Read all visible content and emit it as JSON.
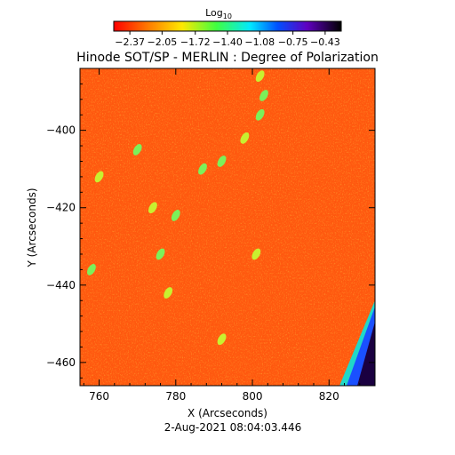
{
  "chart_data": {
    "type": "heatmap",
    "title": "Hinode SOT/SP - MERLIN : Degree of Polarization",
    "colorbar": {
      "label_main": "Log",
      "label_sub": "10",
      "ticks": [
        "-2.37",
        "-2.05",
        "-1.72",
        "-1.40",
        "-1.08",
        "-0.75",
        "-0.43"
      ],
      "range": [
        -2.53,
        -0.27
      ]
    },
    "xlabel": "X (Arcseconds)",
    "ylabel": "Y (Arcseconds)",
    "x_ticks": [
      760,
      780,
      800,
      820
    ],
    "y_ticks": [
      -400,
      -420,
      -440,
      -460
    ],
    "xlim": [
      755,
      832
    ],
    "ylim": [
      -466,
      -384
    ],
    "grid": false,
    "timestamp": "2-Aug-2021 08:04:03.446",
    "colors": {
      "background_field": "#ff5a10",
      "strip_dark": "#0a0010",
      "strip_blue": "#1a50ff",
      "strip_cyan": "#20d8c8"
    },
    "features": [
      {
        "x": 802,
        "y": -386,
        "level": "green-yellow"
      },
      {
        "x": 803,
        "y": -391,
        "level": "green"
      },
      {
        "x": 802,
        "y": -396,
        "level": "green"
      },
      {
        "x": 798,
        "y": -402,
        "level": "green-yellow"
      },
      {
        "x": 792,
        "y": -408,
        "level": "green"
      },
      {
        "x": 787,
        "y": -410,
        "level": "green"
      },
      {
        "x": 780,
        "y": -422,
        "level": "green"
      },
      {
        "x": 776,
        "y": -432,
        "level": "green"
      },
      {
        "x": 778,
        "y": -442,
        "level": "green-yellow"
      },
      {
        "x": 758,
        "y": -436,
        "level": "green"
      },
      {
        "x": 760,
        "y": -412,
        "level": "green-yellow"
      },
      {
        "x": 770,
        "y": -405,
        "level": "green"
      },
      {
        "x": 801,
        "y": -432,
        "level": "green-yellow"
      },
      {
        "x": 792,
        "y": -454,
        "level": "green-yellow"
      },
      {
        "x": 774,
        "y": -420,
        "level": "green-yellow"
      }
    ]
  }
}
